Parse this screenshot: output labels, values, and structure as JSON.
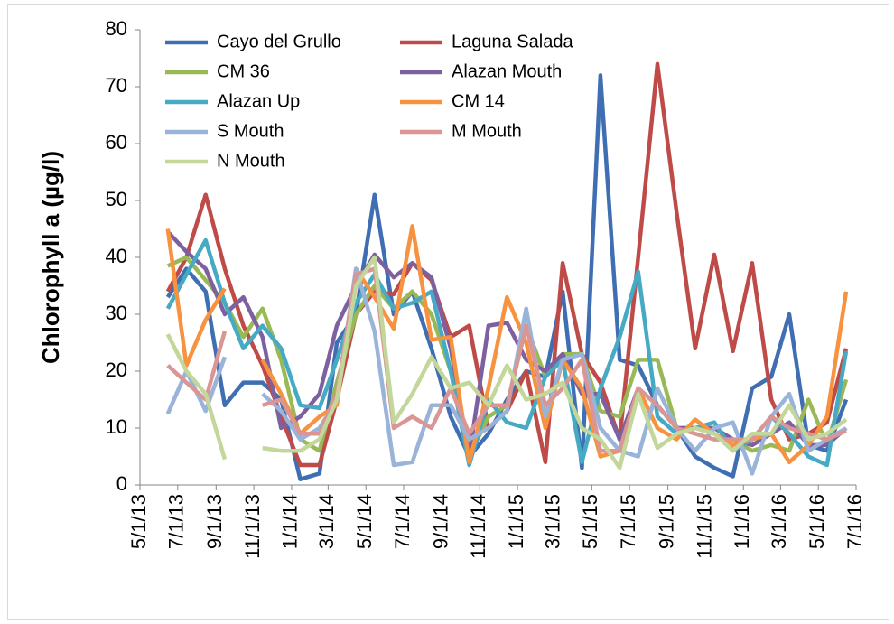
{
  "chart_data": {
    "type": "line",
    "y_label": "Chlorophyll a (µg/l)",
    "x": [
      "6/15/13",
      "7/15/13",
      "8/15/13",
      "9/15/13",
      "10/15/13",
      "11/15/13",
      "12/15/13",
      "1/15/14",
      "2/15/14",
      "3/15/14",
      "4/15/14",
      "5/15/14",
      "6/15/14",
      "7/15/14",
      "8/15/14",
      "9/15/14",
      "10/15/14",
      "11/15/14",
      "12/15/14",
      "1/15/15",
      "2/15/15",
      "3/15/15",
      "4/15/15",
      "5/15/15",
      "6/15/15",
      "7/15/15",
      "8/15/15",
      "9/15/15",
      "10/15/15",
      "11/15/15",
      "12/15/15",
      "1/15/16",
      "2/15/16",
      "3/15/16",
      "4/15/16",
      "5/15/16",
      "6/15/16"
    ],
    "xlim": [
      "5/1/13",
      "7/1/16"
    ],
    "xticks": [
      "5/1/13",
      "7/1/13",
      "9/1/13",
      "11/1/13",
      "1/1/14",
      "3/1/14",
      "5/1/14",
      "7/1/14",
      "9/1/14",
      "11/1/14",
      "1/1/15",
      "3/1/15",
      "5/1/15",
      "7/1/15",
      "9/1/15",
      "11/1/15",
      "1/1/16",
      "3/1/16",
      "5/1/16",
      "7/1/16"
    ],
    "ylim": [
      0,
      80
    ],
    "yticks": [
      0,
      10,
      20,
      30,
      40,
      50,
      60,
      70,
      80
    ],
    "grid": false,
    "legend": "top",
    "series": [
      {
        "name": "Cayo del Grullo",
        "color": "#3F6EB2",
        "values": [
          33,
          38,
          34,
          14,
          18,
          18,
          15,
          1,
          2,
          25,
          30,
          51,
          30,
          34,
          24,
          12,
          5,
          9,
          15,
          20,
          19,
          34,
          3,
          72,
          22,
          21,
          14,
          10,
          5,
          3,
          1.5,
          17,
          19,
          30,
          7,
          6,
          15
        ]
      },
      {
        "name": "Laguna Salada",
        "color": "#BE4B48",
        "values": [
          34,
          40,
          51,
          38,
          28,
          21,
          12,
          3.5,
          3.5,
          15,
          30,
          34,
          33.5,
          39,
          36,
          26,
          28,
          10,
          13,
          20,
          4,
          39,
          23,
          18,
          8,
          40,
          74,
          48,
          24,
          40.5,
          23.5,
          39,
          15,
          8,
          9,
          11,
          24
        ]
      },
      {
        "name": "CM 36",
        "color": "#98B954",
        "values": [
          38.5,
          40,
          36,
          32,
          26,
          31,
          22,
          8,
          6,
          18,
          30,
          35,
          31,
          34,
          30,
          20,
          5,
          12,
          14,
          28,
          19,
          23,
          23,
          13,
          12,
          22,
          22,
          10,
          10,
          10,
          8,
          6,
          7,
          6,
          15,
          7,
          18.5
        ]
      },
      {
        "name": "Alazan Mouth",
        "color": "#7D60A0",
        "values": [
          44.5,
          41,
          38,
          30,
          33,
          26,
          10,
          12,
          16,
          28,
          35,
          40.5,
          36.5,
          39,
          36.5,
          24,
          5,
          28,
          28.5,
          22,
          20,
          23,
          16,
          16,
          8,
          17,
          14,
          10,
          10,
          10,
          8,
          7,
          9,
          11,
          7,
          7,
          10
        ]
      },
      {
        "name": "Alazan Up",
        "color": "#46AAC5",
        "values": [
          31,
          37,
          43,
          32,
          24,
          28,
          24,
          14,
          13.5,
          22,
          32,
          37,
          31,
          32,
          34,
          20,
          3.5,
          15,
          11,
          10,
          19,
          22,
          4,
          17,
          26,
          37.5,
          12,
          9,
          10,
          11,
          6,
          8,
          12,
          9,
          5,
          3.5,
          23.5
        ]
      },
      {
        "name": "CM 14",
        "color": "#F69240",
        "values": [
          45,
          21,
          29,
          34.5,
          null,
          22,
          16,
          9,
          12,
          14,
          38,
          33,
          27.5,
          45.5,
          25.5,
          26,
          4,
          17,
          33,
          25,
          10,
          22,
          17,
          5,
          6,
          17,
          10,
          8,
          11.5,
          9,
          7,
          8,
          9,
          4,
          7,
          12,
          34
        ]
      },
      {
        "name": "S Mouth",
        "color": "#9AB3D9",
        "values": [
          12.5,
          20,
          13,
          22.5,
          null,
          16,
          13,
          8,
          10,
          15,
          38,
          27,
          3.5,
          4,
          14,
          14,
          8,
          10,
          13,
          31,
          12,
          22,
          23,
          10,
          6,
          5,
          17,
          10,
          6,
          10,
          11,
          2,
          12,
          16,
          6,
          8,
          10
        ]
      },
      {
        "name": "M Mouth",
        "color": "#DA9694",
        "values": [
          21,
          18,
          15,
          27,
          null,
          14,
          15,
          9,
          9,
          16,
          37,
          38,
          10,
          12,
          10,
          17,
          9,
          14,
          14,
          28,
          14,
          17,
          22,
          6,
          6,
          17,
          14,
          10,
          9,
          8,
          8,
          8,
          12,
          10,
          9,
          8,
          9.5
        ]
      },
      {
        "name": "N Mouth",
        "color": "#C3D79B",
        "values": [
          26.5,
          20,
          16,
          4.5,
          null,
          6.5,
          6,
          6,
          8,
          15,
          35,
          40,
          11,
          16,
          22.5,
          17,
          18,
          14,
          21,
          15,
          16,
          18,
          10,
          8,
          3,
          16,
          6.5,
          9,
          10,
          9,
          6,
          9,
          9,
          14,
          8,
          9,
          11.5
        ]
      }
    ]
  }
}
